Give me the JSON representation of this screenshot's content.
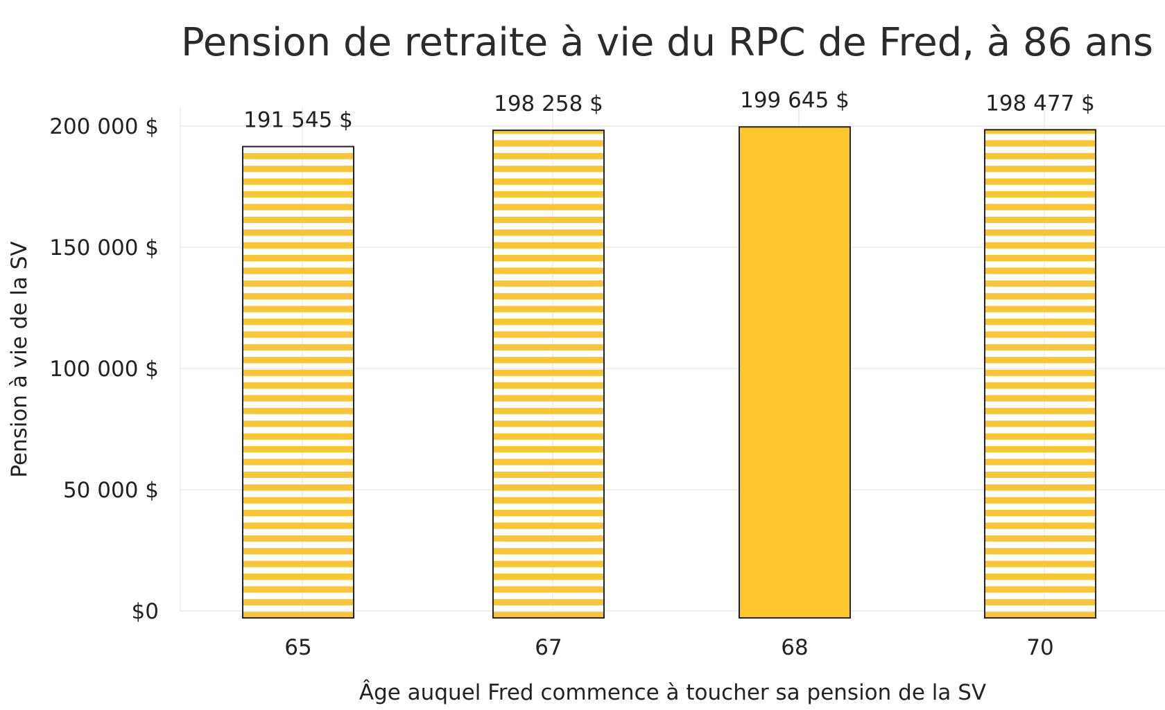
{
  "chart_data": {
    "type": "bar",
    "title": "Pension de retraite à vie du RPC de Fred, à 86 ans",
    "xlabel": "Âge auquel Fred commence à toucher sa pension de la SV",
    "ylabel": "Pension à vie de la SV",
    "categories": [
      "65",
      "67",
      "68",
      "70"
    ],
    "values": [
      191545,
      198258,
      199645,
      198477
    ],
    "value_labels": [
      "191 545 $",
      "198 258 $",
      "199 645 $",
      "198 477 $"
    ],
    "bar_fill": [
      "striped",
      "striped",
      "solid",
      "striped"
    ],
    "ylim": [
      0,
      207000
    ],
    "yticks": [
      0,
      50000,
      100000,
      150000,
      200000
    ],
    "ytick_labels": [
      "$0",
      "50 000 $",
      "100 000 $",
      "150 000 $",
      "200 000 $"
    ],
    "grid": true,
    "colors": {
      "bar": "#FFC72C",
      "stripe": "#F8C534",
      "outline": "#222222",
      "grid": "#ebebeb"
    }
  }
}
